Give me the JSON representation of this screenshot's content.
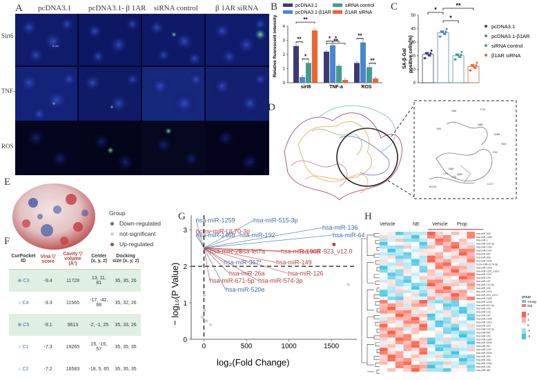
{
  "panels": {
    "A": "A",
    "B": "B",
    "C": "C",
    "D": "D",
    "E": "E",
    "F": "F",
    "G": "G",
    "H": "H"
  },
  "panel_a": {
    "columns": [
      "pcDNA3.1",
      "pcDNA3.1- β 1AR",
      "siRNA control",
      "β 1AR siRNA"
    ],
    "rows": [
      "Sirt6",
      "TNF- α",
      "ROS"
    ],
    "scale_bar": "2 um"
  },
  "colors": {
    "pcDNA31": "#3b3a78",
    "pcDNA31_b1AR": "#4a86cf",
    "siRNA_control": "#3f9e93",
    "b1AR_siRNA": "#f0632e"
  },
  "chart_data": [
    {
      "panel": "B",
      "type": "bar",
      "categories": [
        "sirt6",
        "TNF-a",
        "ROS"
      ],
      "series": [
        {
          "name": "pcDNA3.1",
          "values": [
            2.6,
            2.2,
            1.4
          ]
        },
        {
          "name": "pcDNA3.1-β1AR",
          "values": [
            0.4,
            2.65,
            2.85
          ]
        },
        {
          "name": "siRNA control",
          "values": [
            1.4,
            1.2,
            1.1
          ]
        },
        {
          "name": "β1AR siRNA",
          "values": [
            3.7,
            0.2,
            0.3
          ]
        }
      ],
      "ylabel": "Relative fluorescent intensity",
      "yticks": [
        "0",
        "1",
        "2",
        "3",
        "4"
      ],
      "ylim": [
        0,
        4
      ],
      "sig": [
        "**",
        "*",
        "**",
        "*",
        "*",
        "**",
        "**",
        "**"
      ]
    },
    {
      "panel": "C",
      "type": "scatter",
      "categories": [
        "pcDNA3.1",
        "pcDNA3.1-β1AR",
        "siRNA control",
        "β1AR siRNA"
      ],
      "values": [
        21,
        37,
        20,
        12
      ],
      "ylabel": "SA-β-Gal positive cells(%)",
      "yticks": [
        "0",
        "10",
        "20",
        "30",
        "40",
        "50"
      ],
      "ylim": [
        0,
        50
      ],
      "sig": [
        "*",
        "**",
        "*"
      ],
      "legend": [
        "pcDNA3.1",
        "pcDNA3.1-β1AR",
        "siRNA control",
        "β1AR siRNA"
      ]
    },
    {
      "panel": "G",
      "type": "scatter",
      "xlabel": "log₂(Fold Change)",
      "ylabel": "− log₁₀(P Value)",
      "xticks": [
        "0",
        "500",
        "1000",
        "1500"
      ],
      "yticks": [
        "0",
        "1",
        "2",
        "3"
      ],
      "xlim": [
        -150,
        1800
      ],
      "ylim": [
        0,
        3.4
      ],
      "labels_blue": [
        "hsa-miR-1259",
        "hsa-miR-515-3p",
        "hsa-miR-136",
        "hsa-miR-1468",
        "hsa-miR-192",
        "hsa-miR-644",
        "hsa-miR-367*",
        "hsa-miR-520e"
      ],
      "labels_red": [
        "hcmv-miR-UL70-3p",
        "hsa-miR-25",
        "hsa-let7a",
        "hsa-miR-1908",
        "hsa-miR-923_v12.0",
        "hsa-miR-149",
        "hsa-miR-26a",
        "hsa-miR-126",
        "hsa-miR-671-5p",
        "hsa-miR-574-3p"
      ]
    }
  ],
  "panel_d": {
    "residues": [
      "S80",
      "F78",
      "T84",
      "N88",
      "W69",
      "F62",
      "R63",
      "M134",
      "Y19",
      "D80",
      "Y33",
      "L217",
      "Q98"
    ]
  },
  "panel_e": {
    "legend_title": "Group",
    "legend": [
      "Down-regulated",
      "not-significant",
      "Up-regulated"
    ],
    "legend_colors": [
      "#4a6fa5",
      "#cfcfcf",
      "#c23b3b"
    ]
  },
  "panel_f": {
    "headers": [
      "CurPocket ID",
      "Vina ▽ score",
      "Cavity ▽ volume (Å³)",
      "Center (x, y, z)",
      "Docking size (x, y, z)"
    ],
    "rows": [
      {
        "id": "⊕ C3",
        "score": "-9.4",
        "volume": "11728",
        "center": "13, 11, 81",
        "size": "35, 35, 26"
      },
      {
        "id": "○ C4",
        "score": "-9.3",
        "volume": "11565",
        "center": "-17, -42, 68",
        "size": "35, 32, 26"
      },
      {
        "id": "⊕ C5",
        "score": "-9.1",
        "volume": "9613",
        "center": "-2, -1, 25",
        "size": "35, 33, 26"
      },
      {
        "id": "○ C1",
        "score": "-7.3",
        "volume": "19265",
        "center": "15, -16, 57",
        "size": "35, 35, 35"
      },
      {
        "id": "○ C2",
        "score": "-7.2",
        "volume": "16583",
        "center": "-18, 5, 65",
        "size": "35, 35, 35"
      }
    ]
  },
  "panel_h": {
    "groups": [
      "Vehicle",
      "NE",
      "Vehicle",
      "Prop"
    ],
    "legend_title": "group",
    "legend": [
      "Young",
      "Old"
    ],
    "scale": [
      "2",
      "1",
      "0",
      "-1",
      "-2"
    ],
    "genes": [
      "hsa-miR-205",
      "hsa-miR-1468",
      "hsa-miR-1",
      "hsa-miR-339-3p",
      "hsa-miR-1290",
      "hsa-miR-1231",
      "hsa-miR-487",
      "hsa-miR-99a",
      "hsa-miR-1294",
      "hcmv-miR-UL70-3p",
      "hsa-miR-1259",
      "hsa-miR-1251_v18.0",
      "hsa-miR-1297",
      "hsa-miR-125",
      "hsa-miR-187",
      "hsa-miR-142-5p",
      "hsa-miR-192",
      "hsa-miR-197b",
      "hsa-miR-923_v12.0",
      "hsa-miR-1285",
      "hsa-miR-1248",
      "hsa-miR-671-5p",
      "hsa-miR-19a",
      "hsa-miR-126",
      "hsa-miR-187",
      "hsa-miR-1246",
      "hsa-miR-1913",
      "hsa-miR-223",
      "hsa-miR-142-3p",
      "hsa-miR-550",
      "hsa-miR-149",
      "hsa-miR-1300",
      "hsa-miR-520e",
      "hsa-miR-367",
      "hsa-miR-129*",
      "hsa-miR-519a",
      "hsa-miR-451",
      "hsa-miR-26a",
      "hsa-miR-106b",
      "hsa-miR-186",
      "hsa-miR-661"
    ]
  }
}
